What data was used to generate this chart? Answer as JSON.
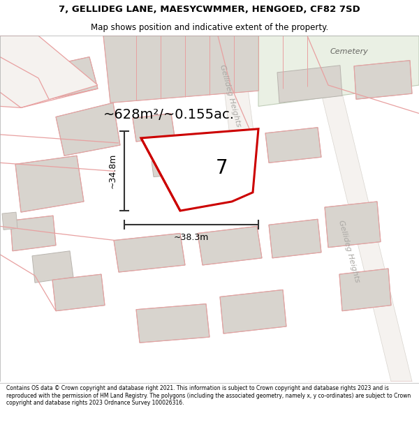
{
  "title_line1": "7, GELLIDEG LANE, MAESYCWMMER, HENGOED, CF82 7SD",
  "title_line2": "Map shows position and indicative extent of the property.",
  "footer_text": "Contains OS data © Crown copyright and database right 2021. This information is subject to Crown copyright and database rights 2023 and is reproduced with the permission of HM Land Registry. The polygons (including the associated geometry, namely x, y co-ordinates) are subject to Crown copyright and database rights 2023 Ordnance Survey 100026316.",
  "area_text": "~628m²/~0.155ac.",
  "width_text": "~38.3m",
  "height_text": "~34.8m",
  "number_text": "7",
  "street_label_upper": "Gellideg Heights",
  "street_label_lower": "Gellideg Heights",
  "cemetery_label": "Cemetery",
  "map_bg": "#ffffff",
  "building_fill": "#d8d4ce",
  "building_edge": "#b8b4ae",
  "red_color": "#cc0000",
  "pink_color": "#e8a0a0",
  "dim_color": "#333333",
  "cemetery_fill": "#eaf0e4",
  "cemetery_edge": "#c0cdb8",
  "road_fill": "#f0ece6",
  "street_label_color": "#aaa8a4",
  "title_line1_size": 9.5,
  "title_line2_size": 8.5,
  "footer_size": 5.5,
  "area_fontsize": 14,
  "number_fontsize": 20,
  "dim_fontsize": 9,
  "cemetery_fontsize": 8,
  "street_fontsize": 8
}
